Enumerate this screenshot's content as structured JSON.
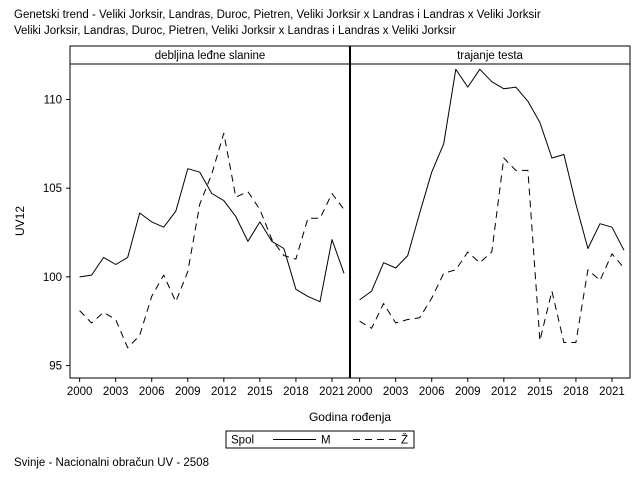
{
  "title": "Genetski trend - Veliki Jorksir, Landras, Duroc, Pietren, Veliki Jorksir x Landras i Landras x Veliki Jorksir",
  "subtitle": "Veliki Jorksir, Landras, Duroc, Pietren, Veliki Jorksir x Landras i Landras x Veliki Jorksir",
  "footnote": "Svinje - Nacionalni obračun UV - 2508",
  "chart_data": {
    "type": "line",
    "ylabel": "UV12",
    "xlabel": "Godina rođenja",
    "ylim": [
      94.3,
      112
    ],
    "xlim": [
      1999.2,
      2022.5
    ],
    "yticks": [
      95,
      100,
      105,
      110
    ],
    "xticks": [
      2000,
      2003,
      2006,
      2009,
      2012,
      2015,
      2018,
      2021
    ],
    "legend": {
      "title": "Spol",
      "position": "bottom",
      "entries": [
        "M",
        "Ž"
      ]
    },
    "panels": [
      {
        "label": "debljina leđne slanine",
        "series": [
          {
            "name": "M",
            "style": "solid",
            "x": [
              2000,
              2001,
              2002,
              2003,
              2004,
              2005,
              2006,
              2007,
              2008,
              2009,
              2010,
              2011,
              2012,
              2013,
              2014,
              2015,
              2016,
              2017,
              2018,
              2019,
              2020,
              2021,
              2022
            ],
            "y": [
              100.0,
              100.1,
              101.1,
              100.7,
              101.1,
              103.6,
              103.1,
              102.8,
              103.7,
              106.1,
              105.9,
              104.7,
              104.3,
              103.4,
              102.0,
              103.1,
              102.0,
              101.6,
              99.3,
              98.9,
              98.6,
              102.1,
              100.2
            ]
          },
          {
            "name": "Ž",
            "style": "dashed",
            "x": [
              2000,
              2001,
              2002,
              2003,
              2004,
              2005,
              2006,
              2007,
              2008,
              2009,
              2010,
              2011,
              2012,
              2013,
              2014,
              2015,
              2016,
              2017,
              2018,
              2019,
              2020,
              2021,
              2022
            ],
            "y": [
              98.1,
              97.4,
              98.0,
              97.6,
              96.0,
              96.7,
              98.9,
              100.1,
              98.6,
              100.3,
              104.1,
              105.8,
              108.1,
              104.5,
              104.8,
              103.8,
              102.1,
              101.2,
              101.0,
              103.3,
              103.3,
              104.7,
              103.8
            ]
          }
        ]
      },
      {
        "label": "trajanje testa",
        "series": [
          {
            "name": "M",
            "style": "solid",
            "x": [
              2000,
              2001,
              2002,
              2003,
              2004,
              2005,
              2006,
              2007,
              2008,
              2009,
              2010,
              2011,
              2012,
              2013,
              2014,
              2015,
              2016,
              2017,
              2018,
              2019,
              2020,
              2021,
              2022
            ],
            "y": [
              98.7,
              99.2,
              100.8,
              100.5,
              101.2,
              103.6,
              105.9,
              107.5,
              111.7,
              110.7,
              111.7,
              111.0,
              110.6,
              110.7,
              109.9,
              108.7,
              106.7,
              106.9,
              104.1,
              101.6,
              103.0,
              102.8,
              101.5
            ]
          },
          {
            "name": "Ž",
            "style": "dashed",
            "x": [
              2000,
              2001,
              2002,
              2003,
              2004,
              2005,
              2006,
              2007,
              2008,
              2009,
              2010,
              2011,
              2012,
              2013,
              2014,
              2015,
              2016,
              2017,
              2018,
              2019,
              2020,
              2021,
              2022
            ],
            "y": [
              97.5,
              97.1,
              98.5,
              97.4,
              97.6,
              97.7,
              98.8,
              100.2,
              100.4,
              101.4,
              100.8,
              101.4,
              106.7,
              106.0,
              106.0,
              96.4,
              99.2,
              96.3,
              96.3,
              100.4,
              99.8,
              101.3,
              100.5
            ]
          }
        ]
      }
    ]
  }
}
